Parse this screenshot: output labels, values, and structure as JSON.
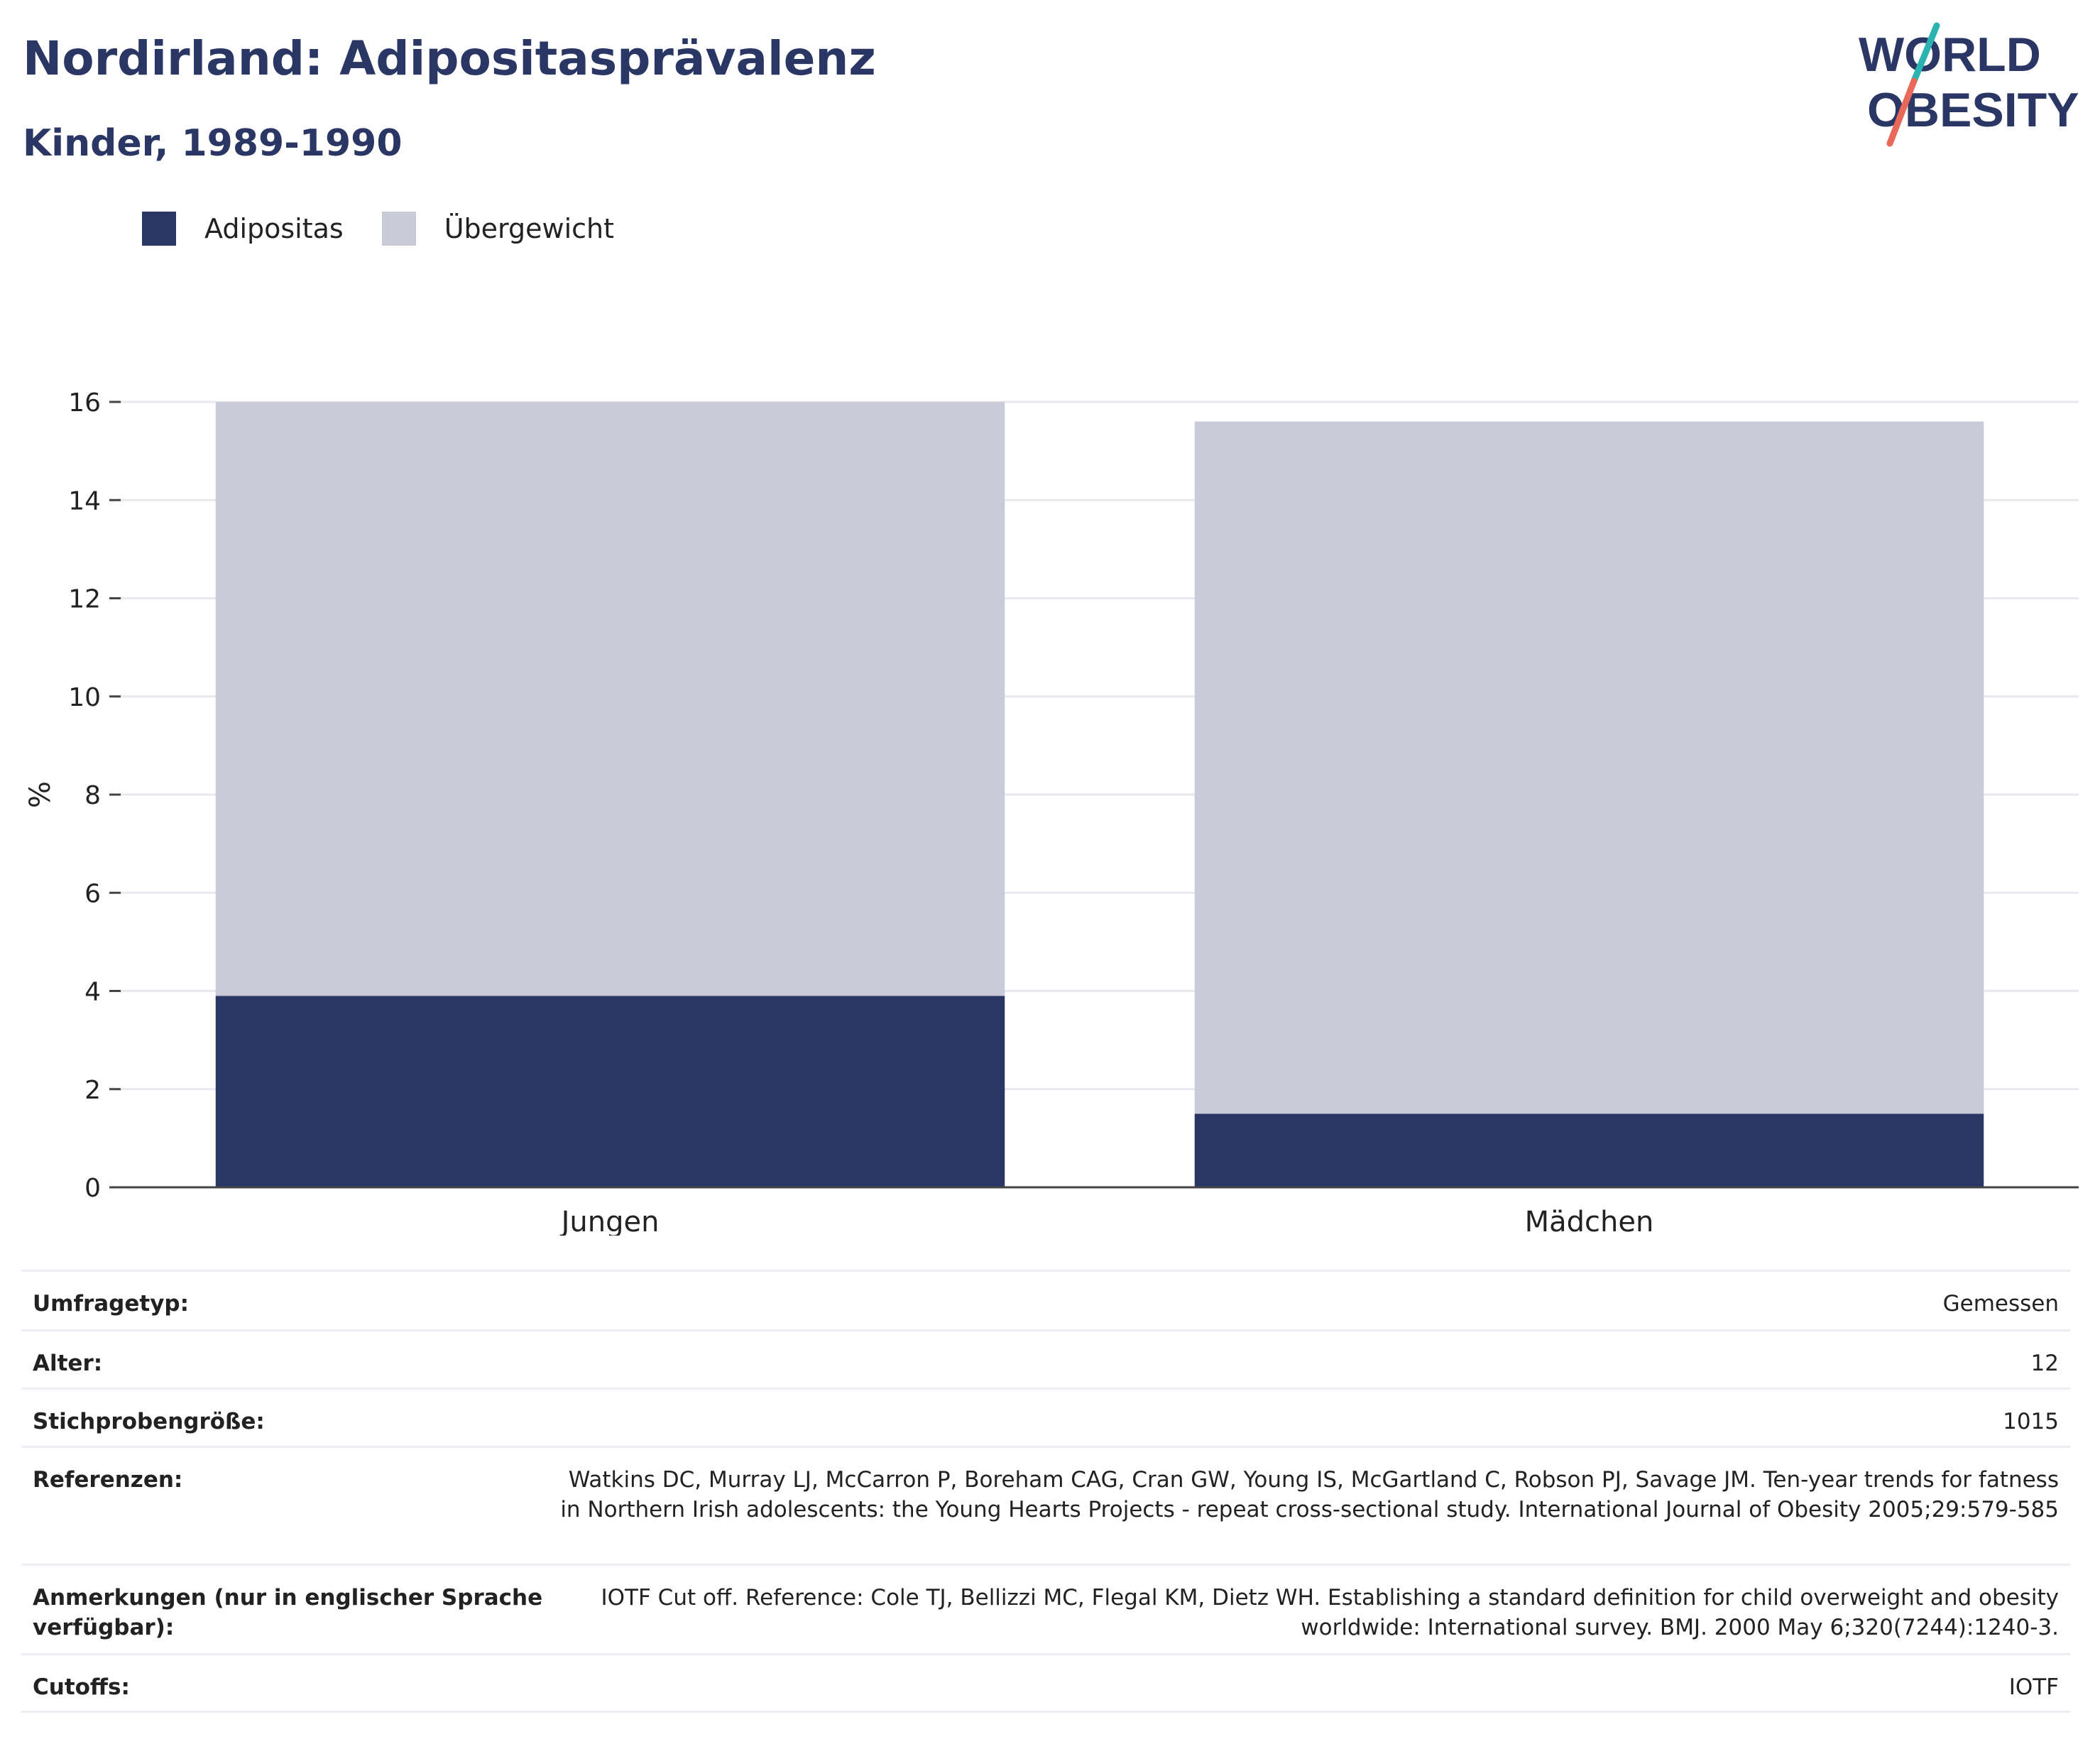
{
  "header": {
    "title": "Nordirland: Adipositasprävalenz",
    "subtitle": "Kinder, 1989-1990"
  },
  "logo": {
    "line1": "WORLD",
    "line2": "OBESITY"
  },
  "colors": {
    "obesity": "#2a3663",
    "overweight": "#c9ccd8",
    "brand": "#2a3663",
    "accent_teal": "#2ab3b1",
    "accent_red": "#e8685a"
  },
  "legend": {
    "items": [
      {
        "label": "Adipositas",
        "color": "#2a3663"
      },
      {
        "label": "Übergewicht",
        "color": "#c9ccd8"
      }
    ]
  },
  "chart_data": {
    "type": "bar",
    "stacked": true,
    "categories": [
      "Jungen",
      "Mädchen"
    ],
    "series": [
      {
        "name": "Adipositas",
        "values": [
          3.9,
          1.5
        ]
      },
      {
        "name": "Übergewicht",
        "values": [
          12.1,
          14.1
        ]
      }
    ],
    "ylabel": "%",
    "ylim": [
      0,
      16
    ],
    "yticks": [
      0,
      2,
      4,
      6,
      8,
      10,
      12,
      14,
      16
    ],
    "grid": true
  },
  "info_table": [
    {
      "label": "Umfragetyp:",
      "value": "Gemessen"
    },
    {
      "label": "Alter:",
      "value": "12"
    },
    {
      "label": "Stichprobengröße:",
      "value": "1015"
    },
    {
      "label": "Referenzen:",
      "value": "Watkins DC, Murray LJ, McCarron P, Boreham CAG, Cran GW, Young IS, McGartland C, Robson PJ, Savage JM. Ten-year trends for fatness in Northern Irish adolescents: the Young Hearts Projects - repeat cross-sectional study. International Journal of Obesity 2005;29:579-585"
    },
    {
      "label": "Anmerkungen (nur in englischer Sprache verfügbar):",
      "value": "IOTF Cut off. Reference: Cole TJ, Bellizzi MC, Flegal KM, Dietz WH. Establishing a standard definition for child overweight and obesity worldwide: International survey. BMJ. 2000 May 6;320(7244):1240-3."
    },
    {
      "label": "Cutoffs:",
      "value": "IOTF"
    }
  ]
}
